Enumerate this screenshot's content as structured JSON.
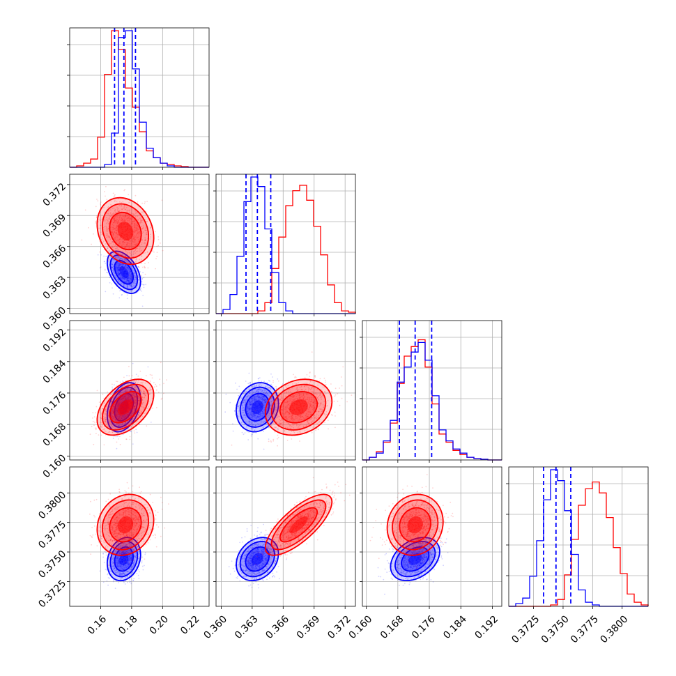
{
  "chart_data": {
    "type": "corner",
    "grid": true,
    "series": [
      {
        "name": "",
        "color": "#0000ff",
        "medians": [
          0.175,
          0.3635,
          0.1724,
          0.3744
        ],
        "quantiles_lo": [
          0.169,
          0.3624,
          0.1684,
          0.37335
        ],
        "quantiles_hi": [
          0.1825,
          0.3648,
          0.1766,
          0.37565
        ],
        "sigma": [
          0.005,
          0.00095,
          0.0029,
          0.00085
        ],
        "corr": [
          [
            0,
            1,
            0
          ],
          [
            -0.45,
            0,
            0
          ],
          [
            0.35,
            0.15,
            0
          ],
          [
            0.2,
            0.25,
            0.35
          ]
        ]
      },
      {
        "name": "",
        "color": "#ff0000",
        "medians": [
          0.176,
          0.3675,
          0.1724,
          0.3773
        ],
        "sigma": [
          0.0085,
          0.0015,
          0.0033,
          0.0012
        ],
        "corr": [
          [
            0,
            1,
            0
          ],
          [
            -0.2,
            0,
            0
          ],
          [
            0.45,
            0.2,
            0
          ],
          [
            0.15,
            0.75,
            0.1
          ]
        ]
      }
    ],
    "params": [
      {
        "range": [
          0.14,
          0.23
        ],
        "ticks": [
          "0.16",
          "0.18",
          "0.20",
          "0.22"
        ]
      },
      {
        "range": [
          0.3595,
          0.373
        ],
        "ticks": [
          "0.360",
          "0.363",
          "0.366",
          "0.369",
          "0.372"
        ]
      },
      {
        "range": [
          0.159,
          0.1944
        ],
        "ticks": [
          "0.160",
          "0.168",
          "0.176",
          "0.184",
          "0.192"
        ]
      },
      {
        "range": [
          0.3704,
          0.3822
        ],
        "ticks": [
          "0.3725",
          "0.3750",
          "0.3775",
          "0.3800"
        ]
      }
    ],
    "marginal_histograms": [
      {
        "bins": [
          0.14,
          0.23
        ],
        "blue": [
          0,
          0,
          0,
          0,
          0,
          0.02,
          0.25,
          0.95,
          1.0,
          0.72,
          0.33,
          0.14,
          0.07,
          0.03,
          0.01,
          0,
          0,
          0,
          0,
          0
        ],
        "red": [
          0,
          0.01,
          0.03,
          0.06,
          0.22,
          0.68,
          1.0,
          0.86,
          0.58,
          0.44,
          0.26,
          0.12,
          0.07,
          0.03,
          0.02,
          0.01,
          0.005,
          0,
          0,
          0
        ]
      },
      {
        "bins": [
          0.3595,
          0.373
        ],
        "blue": [
          0,
          0.03,
          0.14,
          0.42,
          0.82,
          1.0,
          0.93,
          0.62,
          0.3,
          0.08,
          0.02,
          0,
          0,
          0,
          0,
          0,
          0,
          0,
          0,
          0
        ],
        "red": [
          0,
          0,
          0,
          0,
          0,
          0,
          0.02,
          0.08,
          0.33,
          0.56,
          0.79,
          0.9,
          0.94,
          0.83,
          0.64,
          0.43,
          0.21,
          0.08,
          0.02,
          0.01
        ]
      },
      {
        "bins": [
          0.159,
          0.1944
        ],
        "blue": [
          0,
          0.02,
          0.05,
          0.14,
          0.29,
          0.57,
          0.68,
          0.79,
          0.86,
          0.73,
          0.47,
          0.22,
          0.14,
          0.08,
          0.05,
          0.02,
          0.01,
          0.005,
          0,
          0
        ],
        "red": [
          0,
          0.02,
          0.06,
          0.13,
          0.27,
          0.56,
          0.76,
          0.83,
          0.88,
          0.68,
          0.41,
          0.19,
          0.13,
          0.07,
          0.04,
          0.02,
          0.01,
          0.005,
          0,
          0
        ]
      },
      {
        "bins": [
          0.3704,
          0.3822
        ],
        "blue": [
          0,
          0.02,
          0.06,
          0.22,
          0.48,
          0.78,
          1.0,
          0.92,
          0.7,
          0.38,
          0.12,
          0.03,
          0.01,
          0,
          0,
          0,
          0,
          0,
          0,
          0
        ],
        "red": [
          0,
          0,
          0,
          0,
          0,
          0,
          0.01,
          0.05,
          0.23,
          0.49,
          0.74,
          0.86,
          0.91,
          0.83,
          0.65,
          0.43,
          0.24,
          0.09,
          0.03,
          0.01
        ]
      }
    ]
  }
}
